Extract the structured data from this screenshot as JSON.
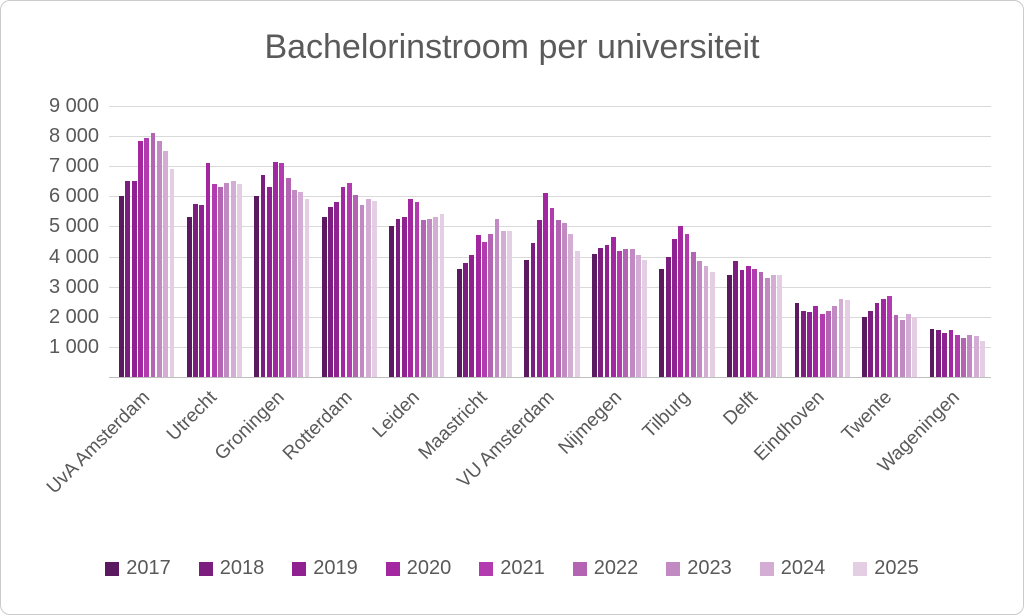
{
  "frame": {
    "background": "#ffffff",
    "border_color": "#cbcbcb"
  },
  "styles": {
    "text_color": "#595959",
    "grid_color": "#d9d9d9",
    "axis_color": "#bfbfbf"
  },
  "chart_data": {
    "type": "bar",
    "title": "Bachelorinstroom per universiteit",
    "xlabel": "",
    "ylabel": "",
    "ylim": [
      0,
      9000
    ],
    "grid": true,
    "legend_position": "bottom",
    "y_ticks": [
      {
        "value": 1000,
        "label": "1 000"
      },
      {
        "value": 2000,
        "label": "2 000"
      },
      {
        "value": 3000,
        "label": "3 000"
      },
      {
        "value": 4000,
        "label": "4 000"
      },
      {
        "value": 5000,
        "label": "5 000"
      },
      {
        "value": 6000,
        "label": "6 000"
      },
      {
        "value": 7000,
        "label": "7 000"
      },
      {
        "value": 8000,
        "label": "8 000"
      },
      {
        "value": 9000,
        "label": "9 000"
      }
    ],
    "categories": [
      "UvA Amsterdam",
      "Utrecht",
      "Groningen",
      "Rotterdam",
      "Leiden",
      "Maastricht",
      "VU Amsterdam",
      "Nijmegen",
      "Tilburg",
      "Delft",
      "Eindhoven",
      "Twente",
      "Wageningen"
    ],
    "series": [
      {
        "name": "2017",
        "color": "#5b1a5f",
        "values": [
          6000,
          5300,
          6000,
          5300,
          5000,
          3600,
          3900,
          4100,
          3600,
          3400,
          2450,
          2000,
          1600
        ]
      },
      {
        "name": "2018",
        "color": "#7b1e80",
        "values": [
          6500,
          5750,
          6700,
          5650,
          5250,
          3800,
          4450,
          4300,
          4000,
          3850,
          2200,
          2200,
          1550
        ]
      },
      {
        "name": "2019",
        "color": "#8f2191",
        "values": [
          6500,
          5700,
          6300,
          5800,
          5300,
          4050,
          5200,
          4400,
          4600,
          3550,
          2150,
          2450,
          1450
        ]
      },
      {
        "name": "2020",
        "color": "#a227a0",
        "values": [
          7850,
          7100,
          7150,
          6300,
          5900,
          4700,
          6100,
          4650,
          5000,
          3700,
          2350,
          2600,
          1550
        ]
      },
      {
        "name": "2021",
        "color": "#b23bb0",
        "values": [
          7950,
          6400,
          7100,
          6450,
          5800,
          4500,
          5600,
          4200,
          4750,
          3600,
          2100,
          2700,
          1400
        ]
      },
      {
        "name": "2022",
        "color": "#b365b3",
        "values": [
          8100,
          6300,
          6600,
          6050,
          5200,
          4750,
          5200,
          4250,
          4150,
          3500,
          2200,
          2050,
          1300
        ]
      },
      {
        "name": "2023",
        "color": "#c28ac2",
        "values": [
          7850,
          6450,
          6200,
          5700,
          5250,
          5250,
          5100,
          4250,
          3850,
          3300,
          2350,
          1900,
          1400
        ]
      },
      {
        "name": "2024",
        "color": "#d3add3",
        "values": [
          7500,
          6500,
          6150,
          5900,
          5300,
          4850,
          4750,
          4050,
          3700,
          3400,
          2600,
          2100,
          1350
        ]
      },
      {
        "name": "2025",
        "color": "#e4cee4",
        "values": [
          6900,
          6400,
          5900,
          5850,
          5400,
          4850,
          4200,
          3900,
          3500,
          3400,
          2550,
          2000,
          1200
        ]
      }
    ]
  }
}
